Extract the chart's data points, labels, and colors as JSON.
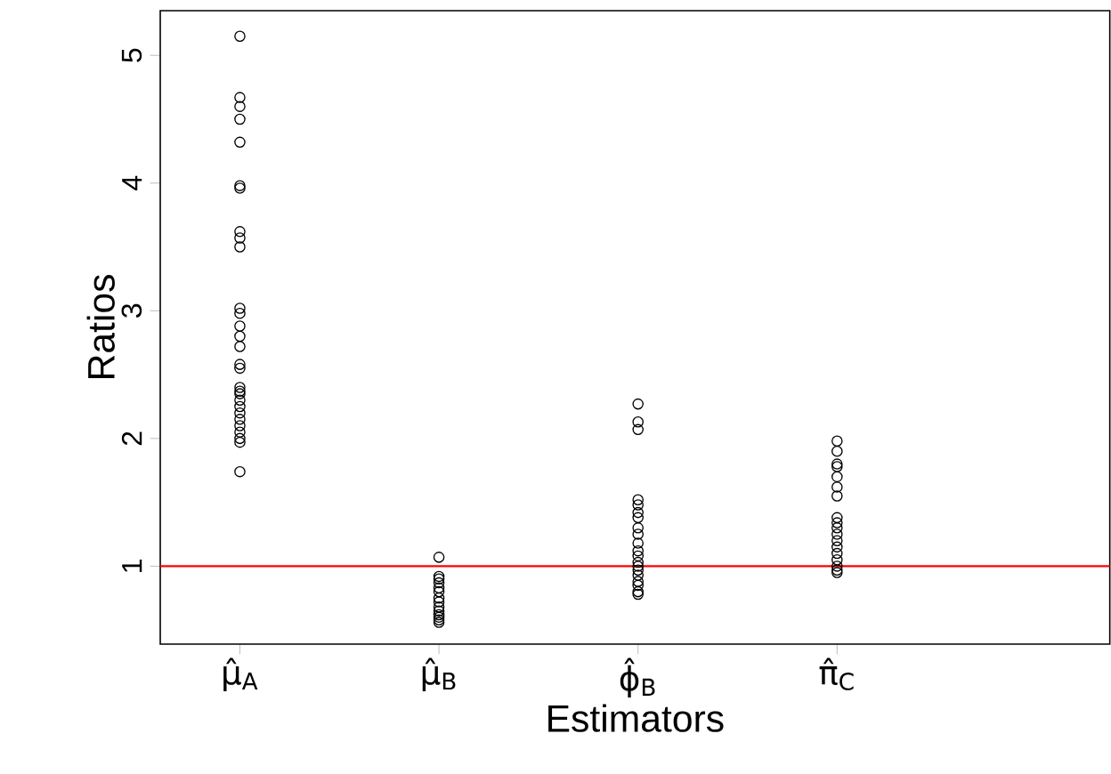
{
  "chart_data": {
    "type": "scatter",
    "xlabel": "Estimators",
    "ylabel": "Ratios",
    "categories": [
      "μ̂$_{A}$",
      "μ̂$_{B}$",
      "ϕ̂$_{B}$",
      "π̂$_{C}$"
    ],
    "series": [
      {
        "color": "#000000",
        "x": [
          "μ̂$_{A}$",
          "μ̂$_{A}$",
          "μ̂$_{A}$",
          "μ̂$_{A}$",
          "μ̂$_{A}$",
          "μ̂$_{A}$",
          "μ̂$_{A}$",
          "μ̂$_{A}$",
          "μ̂$_{A}$",
          "μ̂$_{A}$",
          "μ̂$_{A}$",
          "μ̂$_{A}$",
          "μ̂$_{A}$",
          "μ̂$_{A}$",
          "μ̂$_{A}$",
          "μ̂$_{A}$",
          "μ̂$_{A}$",
          "μ̂$_{A}$",
          "μ̂$_{A}$",
          "μ̂$_{A}$",
          "μ̂$_{A}$",
          "μ̂$_{A}$",
          "μ̂$_{A}$",
          "μ̂$_{A}$",
          "μ̂$_{A}$",
          "μ̂$_{A}$",
          "μ̂$_{A}$",
          "μ̂$_{A}$",
          "μ̂$_{A}$"
        ],
        "values": [
          5.15,
          4.67,
          4.6,
          4.5,
          4.32,
          3.98,
          3.96,
          3.62,
          3.57,
          3.5,
          3.02,
          2.98,
          2.88,
          2.8,
          2.72,
          2.58,
          2.55,
          2.4,
          2.37,
          2.35,
          2.3,
          2.25,
          2.2,
          2.15,
          2.1,
          2.05,
          2.0,
          1.97,
          1.74
        ]
      },
      {
        "color": "#000000",
        "x": [
          "μ̂$_{B}$",
          "μ̂$_{B}$",
          "μ̂$_{B}$",
          "μ̂$_{B}$",
          "μ̂$_{B}$",
          "μ̂$_{B}$",
          "μ̂$_{B}$",
          "μ̂$_{B}$",
          "μ̂$_{B}$",
          "μ̂$_{B}$",
          "μ̂$_{B}$",
          "μ̂$_{B}$",
          "μ̂$_{B}$",
          "μ̂$_{B}$"
        ],
        "values": [
          1.07,
          0.92,
          0.9,
          0.87,
          0.83,
          0.8,
          0.75,
          0.72,
          0.68,
          0.65,
          0.62,
          0.6,
          0.58,
          0.56
        ]
      },
      {
        "color": "#000000",
        "x": [
          "ϕ̂$_{B}$",
          "ϕ̂$_{B}$",
          "ϕ̂$_{B}$",
          "ϕ̂$_{B}$",
          "ϕ̂$_{B}$",
          "ϕ̂$_{B}$",
          "ϕ̂$_{B}$",
          "ϕ̂$_{B}$",
          "ϕ̂$_{B}$",
          "ϕ̂$_{B}$",
          "ϕ̂$_{B}$",
          "ϕ̂$_{B}$",
          "ϕ̂$_{B}$",
          "ϕ̂$_{B}$",
          "ϕ̂$_{B}$",
          "ϕ̂$_{B}$",
          "ϕ̂$_{B}$",
          "ϕ̂$_{B}$",
          "ϕ̂$_{B}$",
          "ϕ̂$_{B}$"
        ],
        "values": [
          2.27,
          2.13,
          2.07,
          1.52,
          1.48,
          1.42,
          1.38,
          1.3,
          1.25,
          1.18,
          1.12,
          1.08,
          1.03,
          1.0,
          0.97,
          0.93,
          0.88,
          0.85,
          0.8,
          0.78
        ]
      },
      {
        "color": "#000000",
        "x": [
          "π̂$_{C}$",
          "π̂$_{C}$",
          "π̂$_{C}$",
          "π̂$_{C}$",
          "π̂$_{C}$",
          "π̂$_{C}$",
          "π̂$_{C}$",
          "π̂$_{C}$",
          "π̂$_{C}$",
          "π̂$_{C}$",
          "π̂$_{C}$",
          "π̂$_{C}$",
          "π̂$_{C}$",
          "π̂$_{C}$",
          "π̂$_{C}$",
          "π̂$_{C}$",
          "π̂$_{C}$",
          "π̂$_{C}$"
        ],
        "values": [
          1.98,
          1.9,
          1.8,
          1.78,
          1.7,
          1.62,
          1.55,
          1.38,
          1.34,
          1.3,
          1.25,
          1.2,
          1.15,
          1.1,
          1.05,
          1.0,
          0.97,
          0.95
        ]
      }
    ],
    "ylim": [
      0.39,
      5.35
    ],
    "yticks": [
      1,
      2,
      3,
      4,
      5
    ],
    "marker": "circle",
    "ref_lines": [
      {
        "axis": "y",
        "value": 1,
        "color": "#ff0000"
      }
    ]
  }
}
